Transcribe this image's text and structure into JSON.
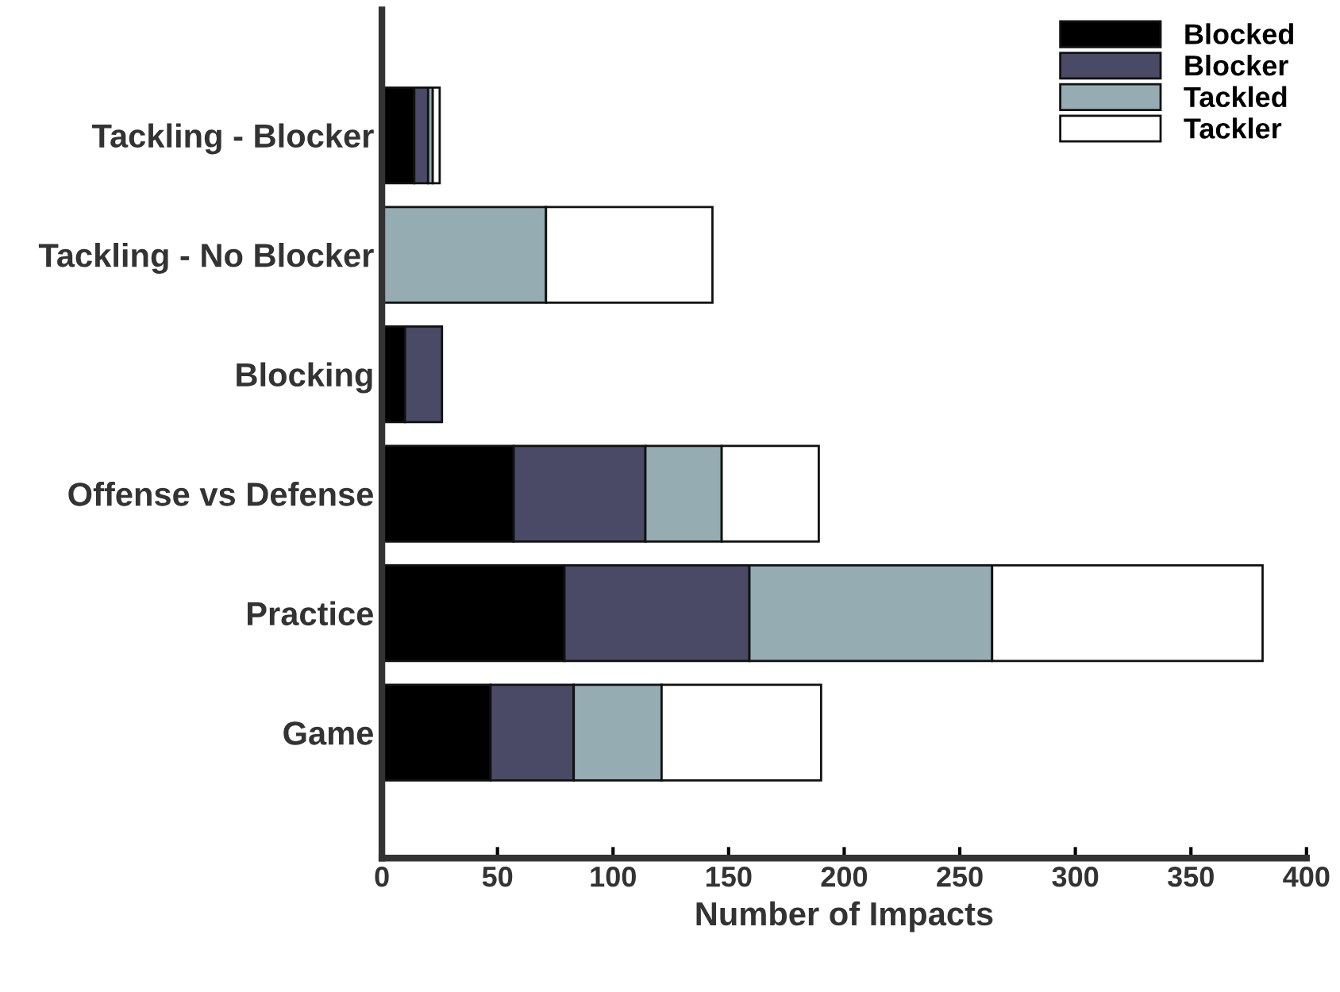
{
  "chart_data": {
    "type": "bar",
    "orientation": "horizontal",
    "stacked": true,
    "categories": [
      "Tackling - Blocker",
      "Tackling - No Blocker",
      "Blocking",
      "Offense vs Defense",
      "Practice",
      "Game"
    ],
    "series": [
      {
        "name": "Blocked",
        "color": "#000000",
        "values": [
          14,
          0,
          10,
          57,
          79,
          47
        ]
      },
      {
        "name": "Blocker",
        "color": "#4a4a66",
        "values": [
          6,
          0,
          16,
          57,
          80,
          36
        ]
      },
      {
        "name": "Tackled",
        "color": "#94acb2",
        "values": [
          2,
          71,
          0,
          33,
          105,
          38
        ]
      },
      {
        "name": "Tackler",
        "color": "#ffffff",
        "values": [
          3,
          72,
          0,
          42,
          117,
          69
        ]
      }
    ],
    "xlabel": "Number of Impacts",
    "xlim": [
      0,
      400
    ],
    "xticks": [
      0,
      50,
      100,
      150,
      200,
      250,
      300,
      350,
      400
    ],
    "legend": "top right",
    "grid": false
  }
}
